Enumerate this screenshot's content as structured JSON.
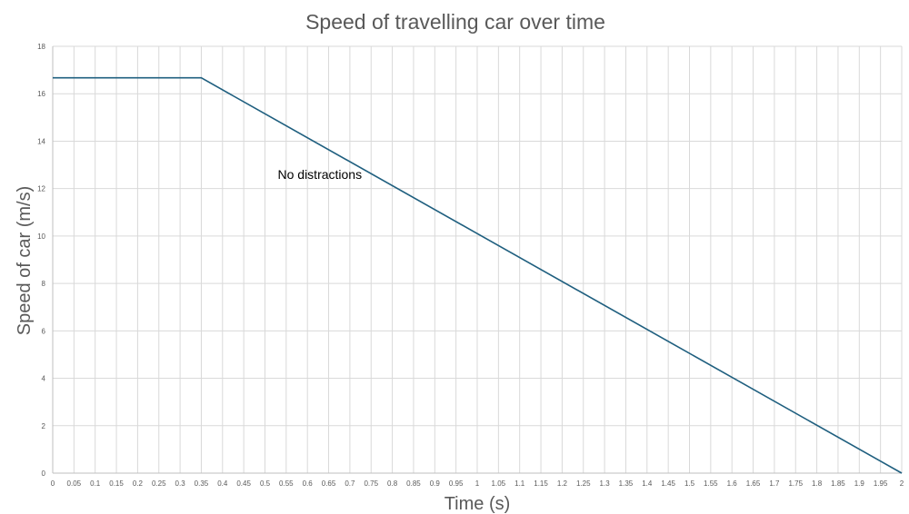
{
  "chart_data": {
    "type": "line",
    "title": "Speed of  travelling car over time",
    "xlabel": "Time (s)",
    "ylabel": "Speed of car (m/s)",
    "xlim": [
      0,
      2
    ],
    "ylim": [
      0,
      18
    ],
    "xticks": [
      "0",
      "0.05",
      "0.1",
      "0.15",
      "0.2",
      "0.25",
      "0.3",
      "0.35",
      "0.4",
      "0.45",
      "0.5",
      "0.55",
      "0.6",
      "0.65",
      "0.7",
      "0.75",
      "0.8",
      "0.85",
      "0.9",
      "0.95",
      "1",
      "1.05",
      "1.1",
      "1.15",
      "1.2",
      "1.25",
      "1.3",
      "1.35",
      "1.4",
      "1.45",
      "1.5",
      "1.55",
      "1.6",
      "1.65",
      "1.7",
      "1.75",
      "1.8",
      "1.85",
      "1.9",
      "1.95",
      "2"
    ],
    "yticks": [
      "0",
      "2",
      "4",
      "6",
      "8",
      "10",
      "12",
      "14",
      "16",
      "18"
    ],
    "grid": true,
    "series": [
      {
        "x": [
          0,
          0.35,
          2
        ],
        "y": [
          16.67,
          16.67,
          0
        ],
        "color": "#1f5f7f"
      }
    ],
    "annotations": [
      {
        "text": "No distractions",
        "x": 0.53,
        "y": 12.4
      }
    ]
  }
}
